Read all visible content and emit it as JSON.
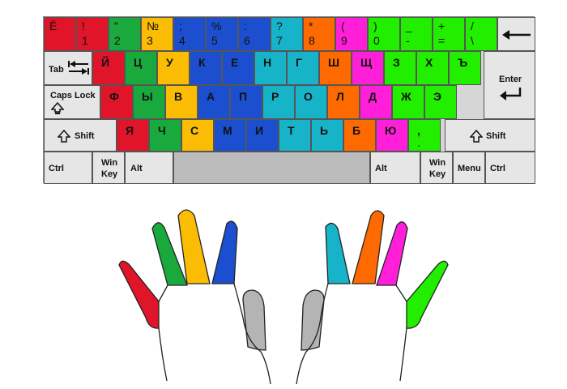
{
  "colors": {
    "red": "#e0152a",
    "green": "#1aa93c",
    "yellow": "#fbbc04",
    "blue": "#1c4fcf",
    "cyan": "#17b3c8",
    "orange": "#ff6a00",
    "magenta": "#ff1fd8",
    "lime": "#22ee00",
    "gray": "#e6e6e6",
    "space": "#bcbcbc",
    "thumb": "#b4b4b4"
  },
  "rows": [
    [
      {
        "name": "yo",
        "top": "Ё",
        "bot": "",
        "color": "red"
      },
      {
        "name": "1",
        "top": "!",
        "bot": "1",
        "color": "red"
      },
      {
        "name": "2",
        "top": "\"",
        "bot": "2",
        "color": "green"
      },
      {
        "name": "3",
        "top": "№",
        "bot": "3",
        "color": "yellow"
      },
      {
        "name": "4",
        "top": ";",
        "bot": "4",
        "color": "blue"
      },
      {
        "name": "5",
        "top": "%",
        "bot": "5",
        "color": "blue"
      },
      {
        "name": "6",
        "top": ":",
        "bot": "6",
        "color": "blue"
      },
      {
        "name": "7",
        "top": "?",
        "bot": "7",
        "color": "cyan"
      },
      {
        "name": "8",
        "top": "*",
        "bot": "8",
        "color": "orange"
      },
      {
        "name": "9",
        "top": "(",
        "bot": "9",
        "color": "magenta"
      },
      {
        "name": "0",
        "top": ")",
        "bot": "0",
        "color": "lime"
      },
      {
        "name": "minus",
        "top": "_",
        "bot": "-",
        "color": "lime"
      },
      {
        "name": "equals",
        "top": "+",
        "bot": "=",
        "color": "lime"
      },
      {
        "name": "backslash",
        "top": "/",
        "bot": "\\",
        "color": "lime"
      }
    ],
    [
      {
        "label": "Й",
        "color": "red"
      },
      {
        "label": "Ц",
        "color": "green"
      },
      {
        "label": "У",
        "color": "yellow"
      },
      {
        "label": "К",
        "color": "blue"
      },
      {
        "label": "Е",
        "color": "blue"
      },
      {
        "label": "Н",
        "color": "cyan"
      },
      {
        "label": "Г",
        "color": "cyan"
      },
      {
        "label": "Ш",
        "color": "orange"
      },
      {
        "label": "Щ",
        "color": "magenta"
      },
      {
        "label": "З",
        "color": "lime"
      },
      {
        "label": "Х",
        "color": "lime"
      },
      {
        "label": "Ъ",
        "color": "lime"
      }
    ],
    [
      {
        "label": "Ф",
        "color": "red"
      },
      {
        "label": "Ы",
        "color": "green"
      },
      {
        "label": "В",
        "color": "yellow"
      },
      {
        "label": "А",
        "color": "blue"
      },
      {
        "label": "П",
        "color": "blue"
      },
      {
        "label": "Р",
        "color": "cyan"
      },
      {
        "label": "О",
        "color": "cyan"
      },
      {
        "label": "Л",
        "color": "orange"
      },
      {
        "label": "Д",
        "color": "magenta"
      },
      {
        "label": "Ж",
        "color": "lime"
      },
      {
        "label": "Э",
        "color": "lime"
      }
    ],
    [
      {
        "label": "Я",
        "color": "red"
      },
      {
        "label": "Ч",
        "color": "green"
      },
      {
        "label": "С",
        "color": "yellow"
      },
      {
        "label": "М",
        "color": "blue"
      },
      {
        "label": "И",
        "color": "blue"
      },
      {
        "label": "Т",
        "color": "cyan"
      },
      {
        "label": "Ь",
        "color": "cyan"
      },
      {
        "label": "Б",
        "color": "orange"
      },
      {
        "label": "Ю",
        "color": "magenta"
      },
      {
        "label": ",",
        "bot": ".",
        "color": "lime"
      }
    ]
  ],
  "special": {
    "backspace": "",
    "tab": "Tab",
    "caps_lock": "Caps Lock",
    "enter": "Enter",
    "shift_left": "Shift",
    "shift_right": "Shift",
    "ctrl_left": "Ctrl",
    "win_left_1": "Win",
    "win_left_2": "Key",
    "alt_left": "Alt",
    "alt_right": "Alt",
    "win_right_1": "Win",
    "win_right_2": "Key",
    "menu": "Menu",
    "ctrl_right": "Ctrl"
  },
  "fingers": {
    "left": [
      "red",
      "green",
      "yellow",
      "blue",
      "thumb"
    ],
    "right": [
      "thumb",
      "cyan",
      "orange",
      "magenta",
      "lime"
    ]
  }
}
